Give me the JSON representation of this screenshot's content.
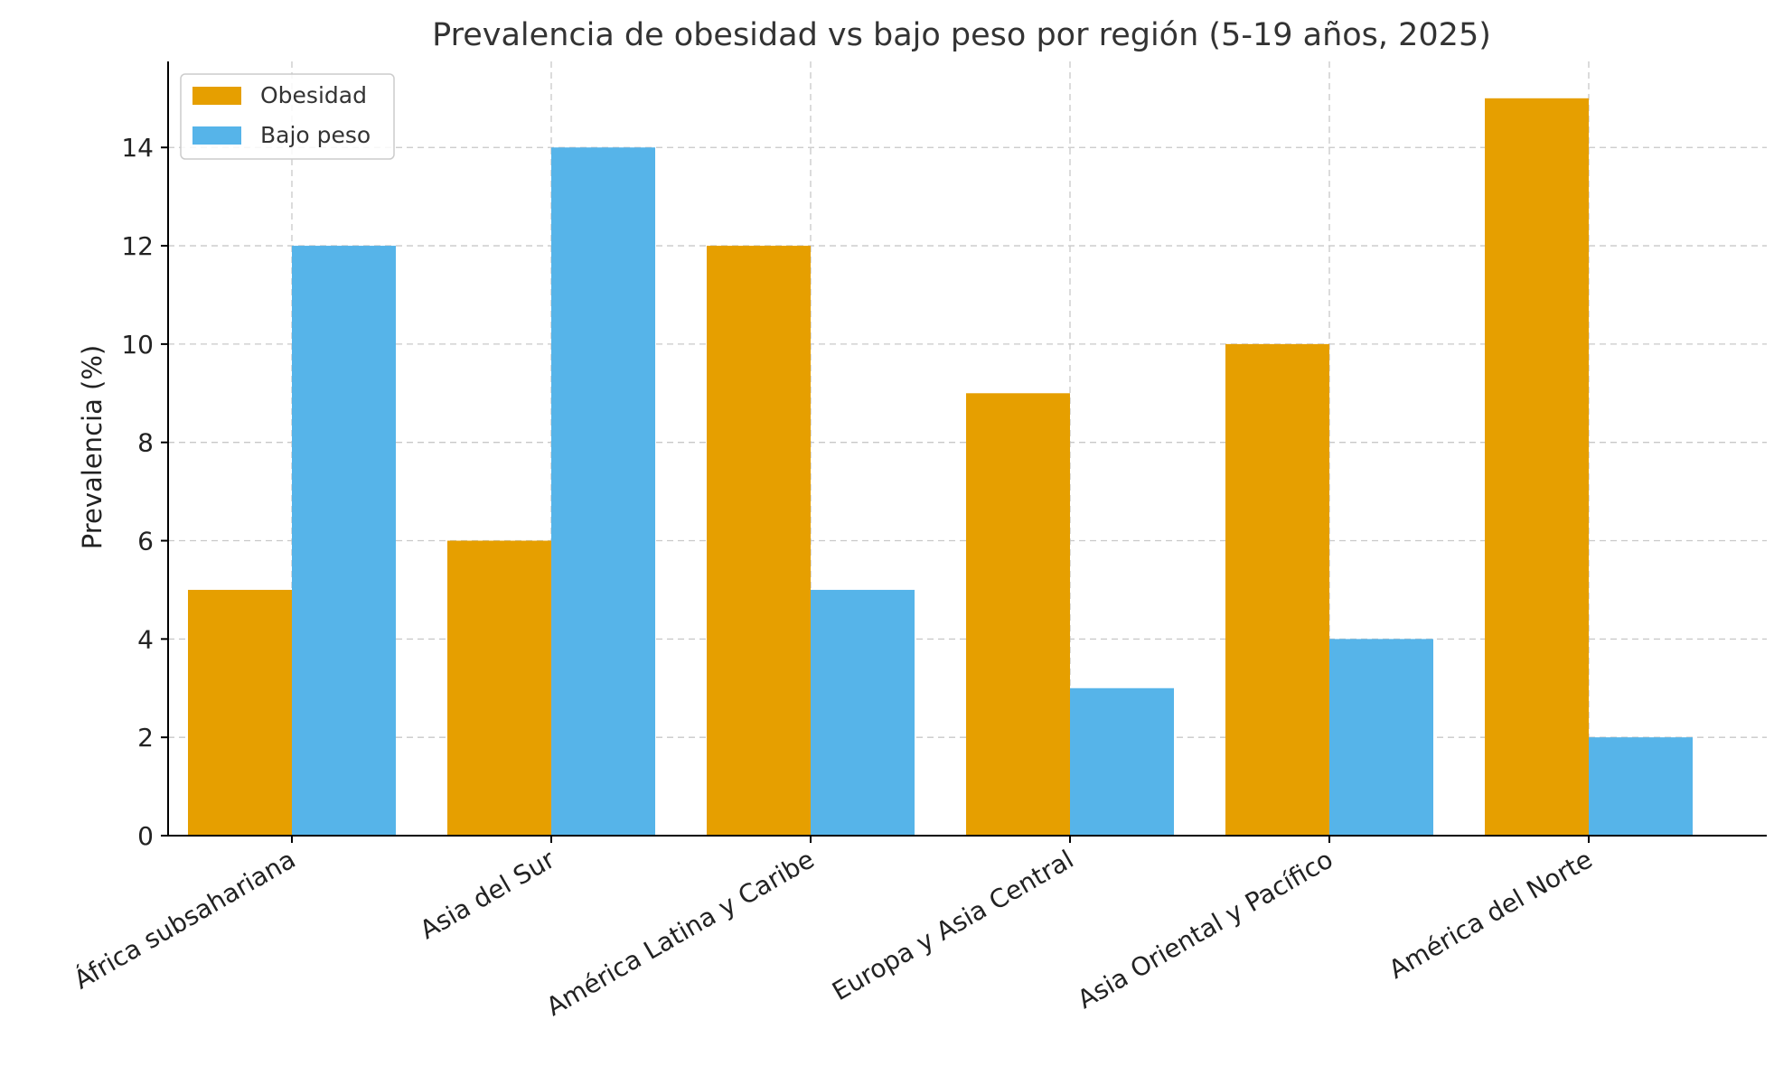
{
  "chart_data": {
    "type": "bar",
    "title": "Prevalencia de obesidad vs bajo peso por región (5-19 años, 2025)",
    "xlabel": "",
    "ylabel": "Prevalencia (%)",
    "categories": [
      "África subsahariana",
      "Asia del Sur",
      "América Latina y Caribe",
      "Europa y Asia Central",
      "Asia Oriental y Pacífico",
      "América del Norte"
    ],
    "series": [
      {
        "name": "Obesidad",
        "color": "#E69F00",
        "values": [
          5,
          6,
          12,
          9,
          10,
          15
        ]
      },
      {
        "name": "Bajo peso",
        "color": "#56B4E9",
        "values": [
          12,
          14,
          5,
          3,
          4,
          2
        ]
      }
    ],
    "ylim": [
      0,
      15.75
    ],
    "yticks": [
      0,
      2,
      4,
      6,
      8,
      10,
      12,
      14
    ],
    "grid": true,
    "legend_position": "top-left"
  }
}
